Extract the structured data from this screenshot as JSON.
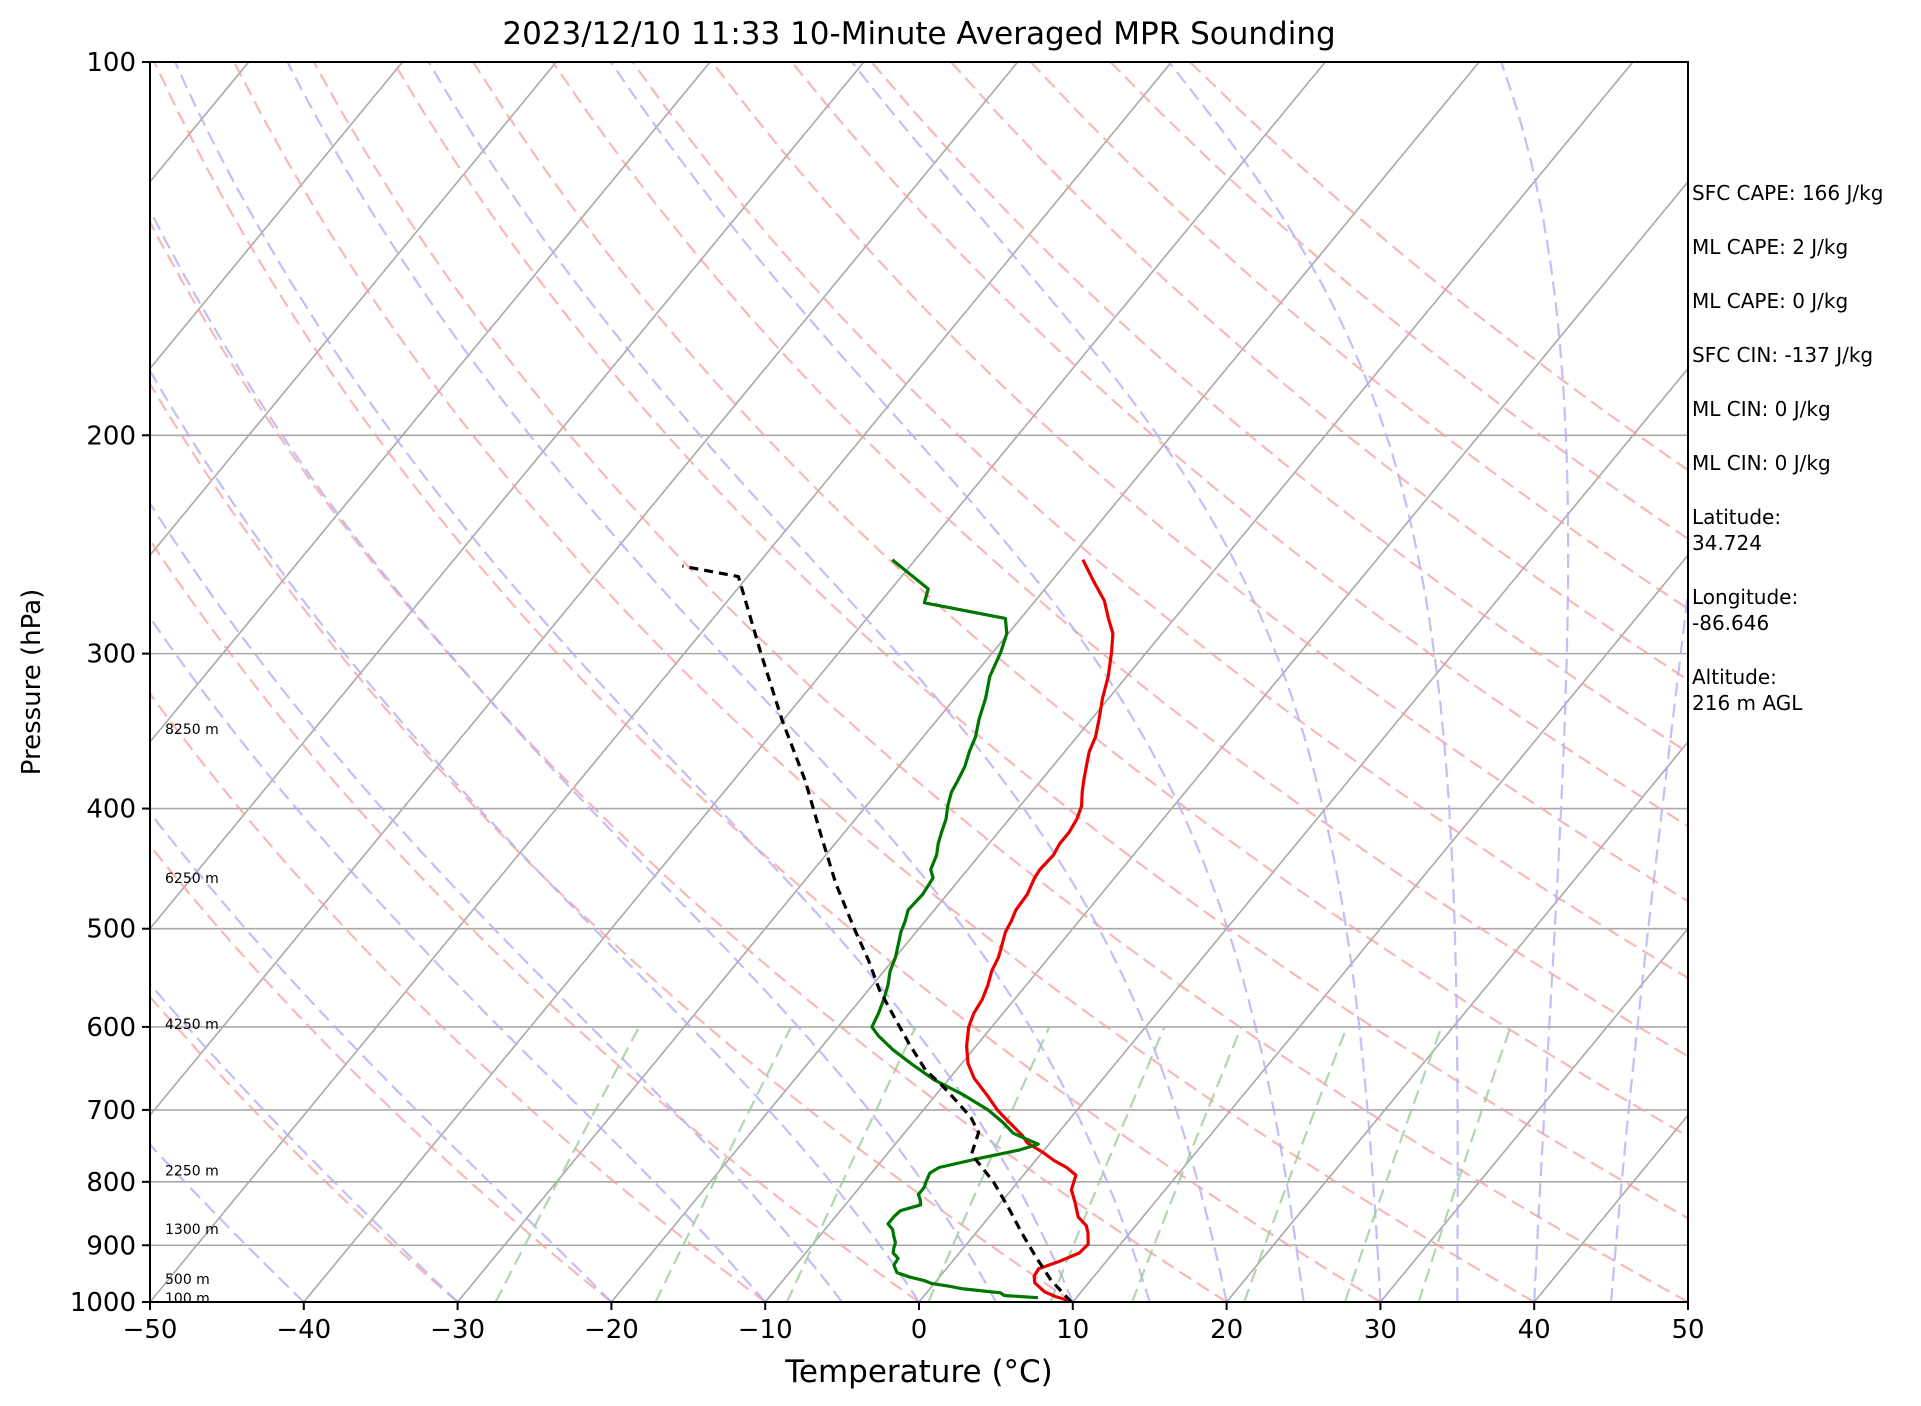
{
  "chart_data": {
    "type": "line",
    "subtype": "skew-t log-p sounding",
    "title": "2023/12/10 11:33 10-Minute Averaged MPR Sounding",
    "xlabel": "Temperature (°C)",
    "ylabel": "Pressure (hPa)",
    "xlim": [
      -50,
      50
    ],
    "ylim": [
      1000,
      100
    ],
    "y_scale": "log",
    "x_ticks": [
      -50,
      -40,
      -30,
      -20,
      -10,
      0,
      10,
      20,
      30,
      40,
      50
    ],
    "y_ticks": [
      100,
      200,
      300,
      400,
      500,
      600,
      700,
      800,
      900,
      1000
    ],
    "height_labels": [
      {
        "label": "8250 m",
        "p": 345
      },
      {
        "label": "6250 m",
        "p": 455
      },
      {
        "label": "4250 m",
        "p": 597
      },
      {
        "label": "2250 m",
        "p": 783
      },
      {
        "label": "1300 m",
        "p": 873
      },
      {
        "label": "500 m",
        "p": 958
      },
      {
        "label": "100 m",
        "p": 993
      }
    ],
    "series": [
      {
        "role": "temperature",
        "color": "#e80000",
        "points": [
          [
            9.6,
            997
          ],
          [
            8.6,
            990
          ],
          [
            7.6,
            981
          ],
          [
            6.5,
            965
          ],
          [
            6.1,
            953
          ],
          [
            6.0,
            940
          ],
          [
            6.9,
            928
          ],
          [
            7.8,
            913
          ],
          [
            7.9,
            898
          ],
          [
            7.3,
            880
          ],
          [
            6.8,
            868
          ],
          [
            5.8,
            854
          ],
          [
            4.8,
            831
          ],
          [
            3.9,
            812
          ],
          [
            3.4,
            790
          ],
          [
            2.4,
            779
          ],
          [
            1.2,
            769
          ],
          [
            0.0,
            757
          ],
          [
            -1.5,
            744
          ],
          [
            -2.2,
            734
          ],
          [
            -2.9,
            726
          ],
          [
            -4.5,
            708
          ],
          [
            -5.2,
            700
          ],
          [
            -6.5,
            683
          ],
          [
            -8.4,
            660
          ],
          [
            -9.6,
            642
          ],
          [
            -10.6,
            622
          ],
          [
            -11.5,
            600
          ],
          [
            -11.9,
            585
          ],
          [
            -12.1,
            570
          ],
          [
            -12.5,
            555
          ],
          [
            -13.0,
            541
          ],
          [
            -13.3,
            527
          ],
          [
            -14.2,
            503
          ],
          [
            -14.4,
            493
          ],
          [
            -14.7,
            483
          ],
          [
            -14.8,
            469
          ],
          [
            -15.2,
            455
          ],
          [
            -15.3,
            448
          ],
          [
            -15.2,
            436
          ],
          [
            -15.4,
            427
          ],
          [
            -15.4,
            418
          ],
          [
            -15.6,
            408
          ],
          [
            -16.0,
            398
          ],
          [
            -16.7,
            388
          ],
          [
            -17.2,
            380
          ],
          [
            -17.8,
            370
          ],
          [
            -18.4,
            360
          ],
          [
            -18.8,
            350
          ],
          [
            -19.5,
            339
          ],
          [
            -20.4,
            326
          ],
          [
            -21.2,
            313
          ],
          [
            -22.3,
            299
          ],
          [
            -23.2,
            289
          ],
          [
            -24.3,
            281
          ],
          [
            -25.5,
            272
          ],
          [
            -27.3,
            262
          ],
          [
            -29.1,
            252
          ]
        ]
      },
      {
        "role": "dewpoint",
        "color": "#007500",
        "points": [
          [
            7.5,
            992
          ],
          [
            5.2,
            988
          ],
          [
            4.8,
            983
          ],
          [
            2.2,
            976
          ],
          [
            1.1,
            971
          ],
          [
            -0.2,
            966
          ],
          [
            -0.8,
            961
          ],
          [
            -1.9,
            955
          ],
          [
            -3.0,
            947
          ],
          [
            -3.6,
            934
          ],
          [
            -3.7,
            922
          ],
          [
            -4.3,
            913
          ],
          [
            -4.5,
            906
          ],
          [
            -4.7,
            896
          ],
          [
            -5.2,
            884
          ],
          [
            -5.6,
            874
          ],
          [
            -6.2,
            865
          ],
          [
            -6.2,
            853
          ],
          [
            -6.1,
            844
          ],
          [
            -5.1,
            835
          ],
          [
            -5.4,
            827
          ],
          [
            -5.8,
            819
          ],
          [
            -5.8,
            808
          ],
          [
            -6.0,
            799
          ],
          [
            -6.2,
            787
          ],
          [
            -5.9,
            779
          ],
          [
            -3.8,
            766
          ],
          [
            -1.6,
            754
          ],
          [
            -0.7,
            746
          ],
          [
            -2.9,
            731
          ],
          [
            -4.2,
            716
          ],
          [
            -5.8,
            700
          ],
          [
            -8.3,
            680
          ],
          [
            -10.9,
            662
          ],
          [
            -13.2,
            643
          ],
          [
            -15.2,
            626
          ],
          [
            -16.9,
            610
          ],
          [
            -17.8,
            600
          ],
          [
            -18.1,
            585
          ],
          [
            -18.5,
            570
          ],
          [
            -19.0,
            555
          ],
          [
            -19.6,
            541
          ],
          [
            -20.0,
            527
          ],
          [
            -21.0,
            503
          ],
          [
            -21.3,
            493
          ],
          [
            -21.7,
            483
          ],
          [
            -21.6,
            469
          ],
          [
            -21.8,
            455
          ],
          [
            -22.4,
            448
          ],
          [
            -22.8,
            436
          ],
          [
            -23.3,
            427
          ],
          [
            -23.7,
            418
          ],
          [
            -24.1,
            408
          ],
          [
            -24.7,
            398
          ],
          [
            -25.2,
            388
          ],
          [
            -25.4,
            380
          ],
          [
            -25.7,
            370
          ],
          [
            -26.2,
            360
          ],
          [
            -26.6,
            350
          ],
          [
            -27.3,
            339
          ],
          [
            -28.0,
            326
          ],
          [
            -28.9,
            313
          ],
          [
            -29.5,
            299
          ],
          [
            -30.1,
            289
          ],
          [
            -31.0,
            281
          ],
          [
            -37.1,
            273
          ],
          [
            -37.6,
            266
          ],
          [
            -41.5,
            252
          ]
        ]
      },
      {
        "role": "parcel",
        "color": "#000000",
        "points": [
          [
            9.9,
            1000
          ],
          [
            7.4,
            960
          ],
          [
            5.2,
            920
          ],
          [
            3.0,
            880
          ],
          [
            0.8,
            840
          ],
          [
            -1.6,
            800
          ],
          [
            -4.5,
            760
          ],
          [
            -5.2,
            730
          ],
          [
            -6.5,
            710
          ],
          [
            -8.2,
            690
          ],
          [
            -10.0,
            670
          ],
          [
            -12.0,
            650
          ],
          [
            -14.4,
            620
          ],
          [
            -16.8,
            590
          ],
          [
            -19.3,
            560
          ],
          [
            -21.6,
            530
          ],
          [
            -24.2,
            500
          ],
          [
            -27.8,
            460
          ],
          [
            -31.4,
            420
          ],
          [
            -35.3,
            380
          ],
          [
            -40.0,
            340
          ],
          [
            -45.0,
            300
          ],
          [
            -50.6,
            260
          ],
          [
            -54.8,
            255
          ]
        ]
      }
    ]
  },
  "stats": [
    {
      "text": "SFC CAPE: 166 J/kg"
    },
    {
      "text": "ML CAPE: 2 J/kg"
    },
    {
      "text": "ML CAPE: 0 J/kg"
    },
    {
      "text": "SFC CIN: -137 J/kg"
    },
    {
      "text": "ML CIN: 0 J/kg"
    },
    {
      "text": "ML CIN: 0 J/kg"
    },
    {
      "text": "Latitude:\n34.724"
    },
    {
      "text": "Longitude:\n-86.646"
    },
    {
      "text": "Altitude:\n216 m AGL"
    }
  ]
}
